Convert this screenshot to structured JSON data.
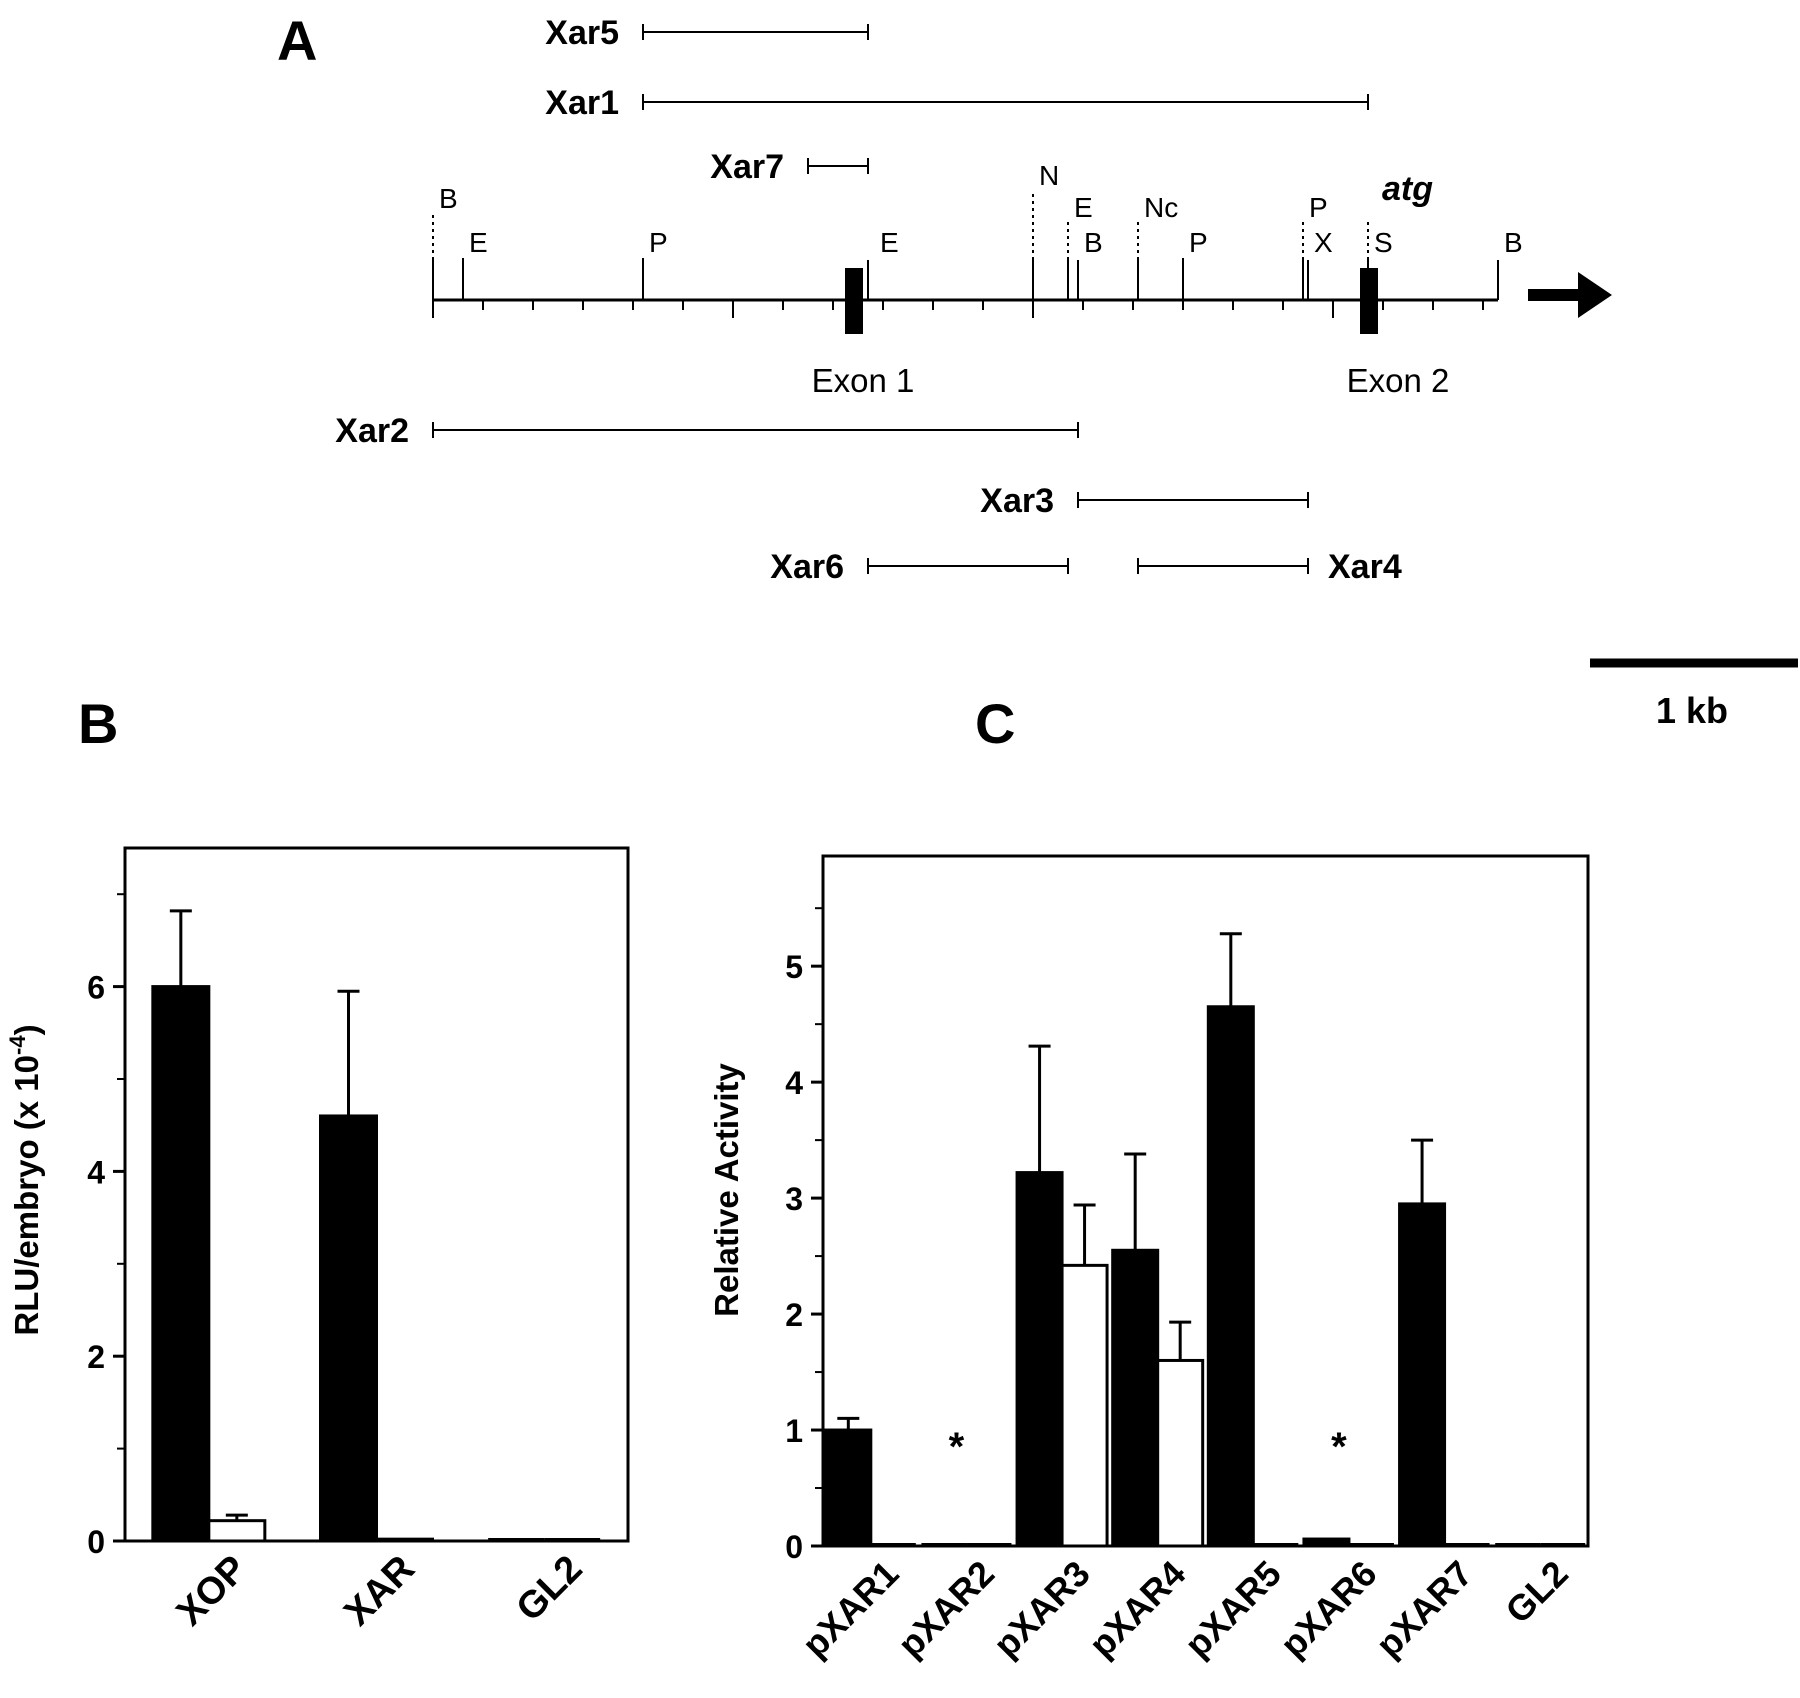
{
  "panel_labels": {
    "a": "A",
    "b": "B",
    "c": "C"
  },
  "map": {
    "fragments_above": [
      {
        "name": "Xar5",
        "start": 2.1,
        "end": 4.35
      },
      {
        "name": "Xar1",
        "start": 2.1,
        "end": 9.35
      },
      {
        "name": "Xar7",
        "start": 3.75,
        "end": 4.35
      }
    ],
    "fragments_below": [
      {
        "name": "Xar2",
        "start": 0.0,
        "end": 6.45
      },
      {
        "name": "Xar3",
        "start": 6.45,
        "end": 8.75
      },
      {
        "name": "Xar6",
        "start": 4.35,
        "end": 6.35
      },
      {
        "name": "Xar4",
        "start": 7.05,
        "end": 8.75
      }
    ],
    "sites": [
      {
        "label": "B",
        "pos": 0.0
      },
      {
        "label": "E",
        "pos": 0.3
      },
      {
        "label": "P",
        "pos": 2.1
      },
      {
        "label": "E",
        "pos": 4.35
      },
      {
        "label": "N",
        "pos": 6.0
      },
      {
        "label": "E",
        "pos": 6.35
      },
      {
        "label": "B",
        "pos": 6.45
      },
      {
        "label": "Nc",
        "pos": 7.05
      },
      {
        "label": "P",
        "pos": 7.5
      },
      {
        "label": "P",
        "pos": 8.7
      },
      {
        "label": "X",
        "pos": 8.75
      },
      {
        "label": "S",
        "pos": 9.35
      },
      {
        "label": "B",
        "pos": 10.65
      }
    ],
    "exons": [
      {
        "label": "Exon 1",
        "pos": 4.2
      },
      {
        "label": "Exon 2",
        "pos": 9.35
      }
    ],
    "atg_label": "atg",
    "scale_label": "1 kb"
  },
  "chart_data": [
    {
      "type": "bar",
      "panel": "B",
      "categories": [
        "XOP",
        "XAR",
        "GL2"
      ],
      "series": [
        {
          "fill": "#000000",
          "values": [
            6.0,
            4.6,
            0.0
          ],
          "errors": [
            0.82,
            1.35,
            0.0
          ]
        },
        {
          "fill": "#ffffff",
          "values": [
            0.22,
            0.02,
            0.0
          ],
          "errors": [
            0.06,
            0.0,
            0.0
          ]
        }
      ],
      "xlabel": "",
      "ylabel": "RLU/embryo (x 10",
      "ylabel_sup": "-4",
      "ylabel_end": ")",
      "ylim": [
        0,
        7.5
      ],
      "yticks": [
        "0",
        "2",
        "4",
        "6"
      ],
      "ytick_values": [
        0,
        2,
        4,
        6
      ],
      "minor_ticks": [
        1,
        3,
        5,
        7
      ]
    },
    {
      "type": "bar",
      "panel": "C",
      "categories": [
        "pXAR1",
        "pXAR2",
        "pXAR3",
        "pXAR4",
        "pXAR5",
        "pXAR6",
        "pXAR7",
        "GL2"
      ],
      "series": [
        {
          "fill": "#000000",
          "values": [
            1.0,
            0.0,
            3.22,
            2.55,
            4.65,
            0.06,
            2.95,
            0.0
          ],
          "errors": [
            0.1,
            0.0,
            1.09,
            0.83,
            0.63,
            0.0,
            0.55,
            0.0
          ]
        },
        {
          "fill": "#ffffff",
          "values": [
            0.0,
            0.0,
            2.42,
            1.6,
            0.0,
            0.0,
            0.0,
            0.0
          ],
          "errors": [
            0.0,
            0.0,
            0.52,
            0.33,
            0.0,
            0.0,
            0.0,
            0.0
          ]
        }
      ],
      "xlabel": "",
      "ylabel": "Relative Activity",
      "ylim": [
        0,
        5.95
      ],
      "yticks": [
        "0",
        "1",
        "2",
        "3",
        "4",
        "5"
      ],
      "ytick_values": [
        0,
        1,
        2,
        3,
        4,
        5
      ],
      "minor_ticks": [
        0.5,
        1.5,
        2.5,
        3.5,
        4.5,
        5.5
      ],
      "asterisks": [
        {
          "category": "pXAR2",
          "text": "*"
        },
        {
          "category": "pXAR6",
          "text": "*"
        }
      ]
    }
  ]
}
